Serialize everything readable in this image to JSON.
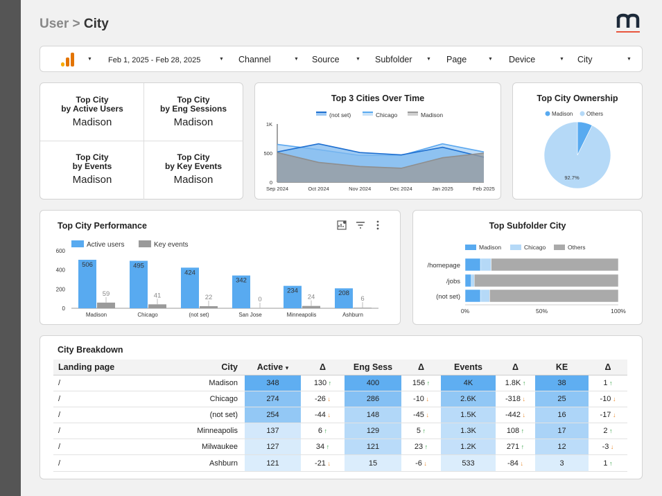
{
  "breadcrumb": {
    "parent": "User",
    "sep": ">",
    "current": "City"
  },
  "filters": {
    "date_range": "Feb 1, 2025 - Feb 28, 2025",
    "channel": "Channel",
    "source": "Source",
    "subfolder": "Subfolder",
    "page": "Page",
    "device": "Device",
    "city": "City"
  },
  "kpis": [
    {
      "line1": "Top City",
      "line2": "by Active Users",
      "value": "Madison"
    },
    {
      "line1": "Top City",
      "line2": "by Eng Sessions",
      "value": "Madison"
    },
    {
      "line1": "Top City",
      "line2": "by Events",
      "value": "Madison"
    },
    {
      "line1": "Top City",
      "line2": "by Key Events",
      "value": "Madison"
    }
  ],
  "colors": {
    "blue": "#58aaf0",
    "light_blue": "#b5d9f7",
    "gray": "#9a9a9a",
    "dark_blue": "#1e6fd0",
    "up": "#2e9e3f",
    "down": "#e8892d"
  },
  "chart_data": [
    {
      "type": "area",
      "title": "Top 3 Cities Over Time",
      "categories": [
        "Sep 2024",
        "Oct 2024",
        "Nov 2024",
        "Dec 2024",
        "Jan 2025",
        "Feb 2025"
      ],
      "series": [
        {
          "name": "(not set)",
          "values": [
            520,
            660,
            510,
            470,
            600,
            430
          ]
        },
        {
          "name": "Chicago",
          "values": [
            650,
            560,
            460,
            460,
            660,
            520
          ]
        },
        {
          "name": "Madison",
          "values": [
            510,
            340,
            270,
            240,
            420,
            500
          ]
        }
      ],
      "yticks": [
        "0",
        "500",
        "1K"
      ],
      "ylim": [
        0,
        1000
      ],
      "legend": "top"
    },
    {
      "type": "pie",
      "title": "Top City Ownership",
      "labels": [
        "Madison",
        "Others"
      ],
      "values": [
        7.3,
        92.7
      ],
      "label_text": "92.7%",
      "legend": "top"
    },
    {
      "type": "bar",
      "title": "Top City Performance",
      "categories": [
        "Madison",
        "Chicago",
        "(not set)",
        "San Jose",
        "Minneapolis",
        "Ashburn"
      ],
      "series": [
        {
          "name": "Active users",
          "values": [
            506,
            495,
            424,
            342,
            234,
            208
          ]
        },
        {
          "name": "Key events",
          "values": [
            59,
            41,
            22,
            0,
            24,
            6
          ]
        }
      ],
      "yticks": [
        "0",
        "200",
        "400",
        "600"
      ],
      "ylim": [
        0,
        600
      ],
      "legend": "top-left"
    },
    {
      "type": "bar",
      "title": "Top Subfolder City",
      "orientation": "horizontal-stacked-percent",
      "categories": [
        "/homepage",
        "/jobs",
        "(not set)"
      ],
      "series": [
        {
          "name": "Madison",
          "values": [
            10,
            4,
            10
          ]
        },
        {
          "name": "Chicago",
          "values": [
            7,
            2,
            6
          ]
        },
        {
          "name": "Others",
          "values": [
            83,
            94,
            84
          ]
        }
      ],
      "xticks": [
        "0%",
        "50%",
        "100%"
      ],
      "legend": "top"
    }
  ],
  "bar_chart_icons": [
    "insights-icon",
    "filter-icon",
    "more-vert-icon"
  ],
  "table": {
    "title": "City Breakdown",
    "headers": [
      "Landing page",
      "City",
      "Active",
      "Δ",
      "Eng Sess",
      "Δ",
      "Events",
      "Δ",
      "KE",
      "Δ"
    ],
    "sort_indicator": "▾",
    "rows": [
      [
        "/",
        "Madison",
        "348",
        "130",
        "400",
        "156",
        "4K",
        "1.8K",
        "38",
        "1"
      ],
      [
        "/",
        "Chicago",
        "274",
        "-26",
        "286",
        "-10",
        "2.6K",
        "-318",
        "25",
        "-10"
      ],
      [
        "/",
        "(not set)",
        "254",
        "-44",
        "148",
        "-45",
        "1.5K",
        "-442",
        "16",
        "-17"
      ],
      [
        "/",
        "Minneapolis",
        "137",
        "6",
        "129",
        "5",
        "1.3K",
        "108",
        "17",
        "2"
      ],
      [
        "/",
        "Milwaukee",
        "127",
        "34",
        "121",
        "23",
        "1.2K",
        "271",
        "12",
        "-3"
      ],
      [
        "/",
        "Ashburn",
        "121",
        "-21",
        "15",
        "-6",
        "533",
        "-84",
        "3",
        "1"
      ]
    ]
  }
}
